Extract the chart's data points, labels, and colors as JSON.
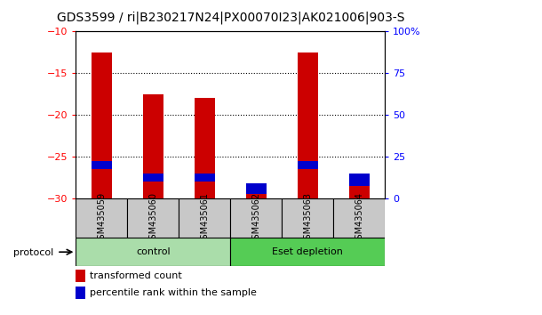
{
  "title": "GDS3599 / ri|B230217N24|PX00070I23|AK021006|903-S",
  "samples": [
    "GSM435059",
    "GSM435060",
    "GSM435061",
    "GSM435062",
    "GSM435063",
    "GSM435064"
  ],
  "red_values": [
    -12.5,
    -17.5,
    -18.0,
    -29.5,
    -12.5,
    -27.0
  ],
  "blue_tops": [
    -25.5,
    -27.0,
    -27.0,
    -28.2,
    -25.5,
    -27.0
  ],
  "blue_bottoms": [
    -26.5,
    -28.0,
    -28.0,
    -29.5,
    -26.5,
    -28.5
  ],
  "ylim_left": [
    -30,
    -10
  ],
  "ylim_right": [
    0,
    100
  ],
  "yticks_left": [
    -30,
    -25,
    -20,
    -15,
    -10
  ],
  "yticks_right": [
    0,
    25,
    50,
    75,
    100
  ],
  "yticklabels_right": [
    "0",
    "25",
    "50",
    "75",
    "100%"
  ],
  "grid_yticks": [
    -15,
    -20,
    -25
  ],
  "groups": [
    {
      "label": "control",
      "n": 3,
      "color": "#AADDAA"
    },
    {
      "label": "Eset depletion",
      "n": 3,
      "color": "#55CC55"
    }
  ],
  "bar_bottom": -30,
  "red_color": "#CC0000",
  "blue_color": "#0000CC",
  "gray_color": "#C8C8C8",
  "protocol_label": "protocol",
  "legend_red": "transformed count",
  "legend_blue": "percentile rank within the sample",
  "title_fontsize": 10,
  "tick_fontsize": 8,
  "label_fontsize": 8,
  "sample_fontsize": 7
}
